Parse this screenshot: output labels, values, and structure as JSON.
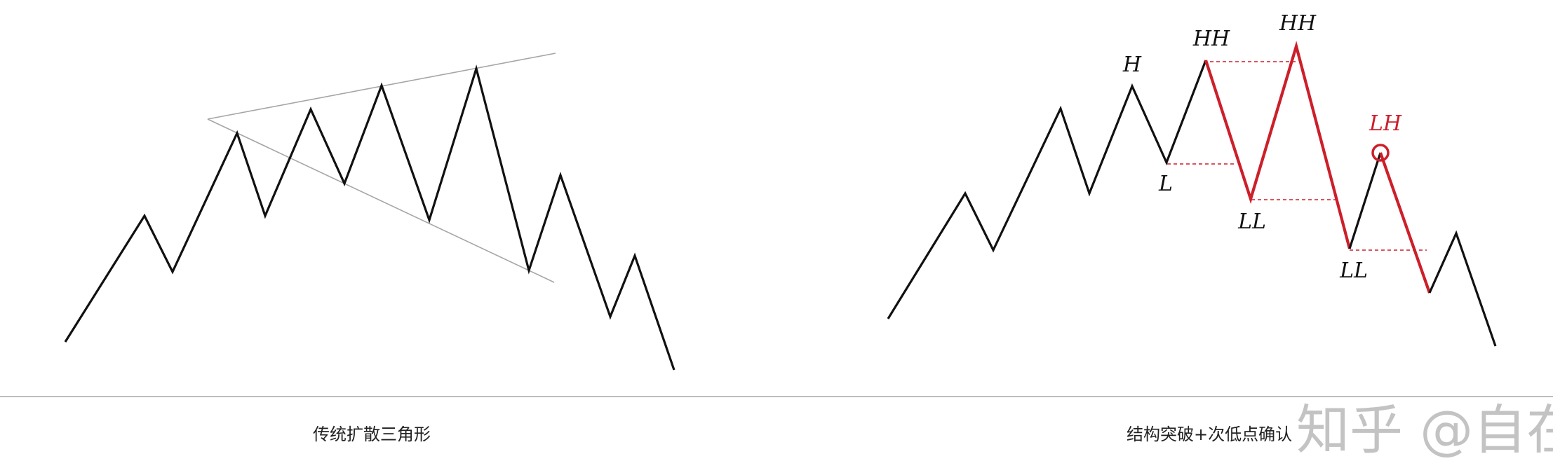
{
  "left_panel": {
    "caption": "传统扩散三角形"
  },
  "right_panel": {
    "caption": "结构突破+次低点确认",
    "labels": {
      "h": "H",
      "hh1": "HH",
      "hh2": "HH",
      "l": "L",
      "ll1": "LL",
      "ll2": "LL",
      "lh": "LH"
    }
  },
  "watermark": "知乎 @自在",
  "colors": {
    "price_line": "#111111",
    "highlight": "#cc1f2a",
    "trendline": "#a6a6a6",
    "divider": "#bdbdbd",
    "label_text": "#111111"
  }
}
